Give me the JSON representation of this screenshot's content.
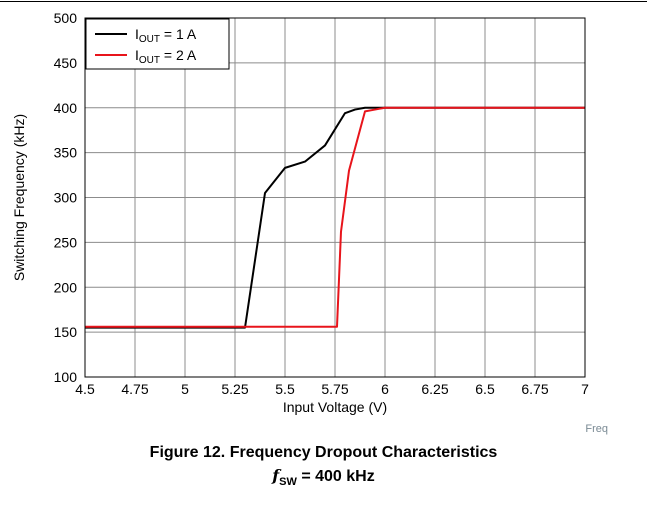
{
  "caption": {
    "figure_title": "Figure 12. Frequency Dropout Characteristics",
    "subtitle_symbol": "f",
    "subtitle_subscript": "SW",
    "subtitle_rest": " = 400 kHz"
  },
  "credit": "Freq",
  "chart_data": {
    "type": "line",
    "xlabel": "Input Voltage (V)",
    "ylabel": "Switching Frequency (kHz)",
    "xlim": [
      4.5,
      7
    ],
    "ylim": [
      100,
      500
    ],
    "x_ticks": [
      4.5,
      4.75,
      5,
      5.25,
      5.5,
      5.75,
      6,
      6.25,
      6.5,
      6.75,
      7
    ],
    "x_tick_labels": [
      "4.5",
      "4.75",
      "5",
      "5.25",
      "5.5",
      "5.75",
      "6",
      "6.25",
      "6.5",
      "6.75",
      "7"
    ],
    "y_ticks": [
      100,
      150,
      200,
      250,
      300,
      350,
      400,
      450,
      500
    ],
    "y_tick_labels": [
      "100",
      "150",
      "200",
      "250",
      "300",
      "350",
      "400",
      "450",
      "500"
    ],
    "grid": true,
    "legend_position": "top-left",
    "series": [
      {
        "name_main": "I",
        "name_sub": "OUT",
        "name_rest": " = 1 A",
        "color": "#000000",
        "x": [
          4.5,
          5.3,
          5.4,
          5.5,
          5.6,
          5.7,
          5.8,
          5.85,
          5.9,
          6.0,
          7.0
        ],
        "y": [
          155,
          155,
          305,
          333,
          340,
          358,
          394,
          398,
          400,
          400,
          400
        ]
      },
      {
        "name_main": "I",
        "name_sub": "OUT",
        "name_rest": " = 2 A",
        "color": "#e8141b",
        "x": [
          4.5,
          5.76,
          5.78,
          5.82,
          5.9,
          5.95,
          6.0,
          7.0
        ],
        "y": [
          156,
          156,
          262,
          330,
          396,
          398,
          400,
          400
        ]
      }
    ]
  }
}
